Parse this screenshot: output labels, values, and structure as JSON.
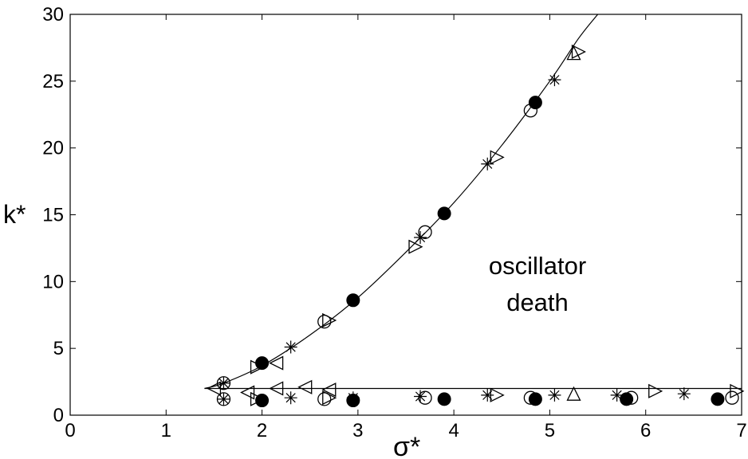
{
  "chart_data": {
    "type": "scatter",
    "title": "",
    "xlabel": "σ*",
    "ylabel": "k*",
    "xlim": [
      0,
      7
    ],
    "ylim": [
      0,
      30
    ],
    "xticks": [
      0,
      1,
      2,
      3,
      4,
      5,
      6,
      7
    ],
    "yticks": [
      0,
      5,
      10,
      15,
      20,
      25,
      30
    ],
    "grid": false,
    "annotation": [
      "oscillator",
      "death"
    ],
    "curves": [
      {
        "points": [
          [
            1.4,
            2.0
          ],
          [
            1.6,
            2.4
          ],
          [
            2.0,
            3.7
          ],
          [
            2.5,
            6.0
          ],
          [
            3.0,
            8.8
          ],
          [
            3.5,
            12.2
          ],
          [
            4.0,
            15.9
          ],
          [
            4.5,
            20.2
          ],
          [
            5.0,
            25.0
          ],
          [
            5.3,
            28.2
          ],
          [
            5.5,
            30.0
          ]
        ]
      },
      {
        "points": [
          [
            1.4,
            2.0
          ],
          [
            7.0,
            2.0
          ]
        ]
      }
    ],
    "series": [
      {
        "marker": "filled-circle",
        "points": [
          [
            2.0,
            3.9
          ],
          [
            2.95,
            8.6
          ],
          [
            3.9,
            15.1
          ],
          [
            4.85,
            23.4
          ],
          [
            2.0,
            1.1
          ],
          [
            2.95,
            1.1
          ],
          [
            3.9,
            1.2
          ],
          [
            4.85,
            1.2
          ],
          [
            5.8,
            1.2
          ],
          [
            6.75,
            1.2
          ]
        ]
      },
      {
        "marker": "open-circle",
        "points": [
          [
            1.6,
            2.4
          ],
          [
            1.6,
            1.2
          ],
          [
            2.65,
            7.0
          ],
          [
            2.65,
            1.2
          ],
          [
            3.7,
            13.7
          ],
          [
            3.7,
            1.3
          ],
          [
            4.8,
            22.8
          ],
          [
            4.8,
            1.3
          ],
          [
            5.85,
            1.3
          ],
          [
            6.9,
            1.3
          ]
        ]
      },
      {
        "marker": "asterisk",
        "points": [
          [
            1.6,
            2.4
          ],
          [
            1.6,
            1.2
          ],
          [
            2.3,
            5.1
          ],
          [
            2.3,
            1.3
          ],
          [
            2.95,
            1.3
          ],
          [
            3.65,
            13.3
          ],
          [
            3.65,
            1.4
          ],
          [
            4.35,
            18.8
          ],
          [
            4.35,
            1.5
          ],
          [
            5.05,
            25.1
          ],
          [
            5.05,
            1.5
          ],
          [
            5.7,
            1.5
          ],
          [
            6.4,
            1.6
          ]
        ]
      },
      {
        "marker": "triangle-right",
        "points": [
          [
            1.95,
            3.6
          ],
          [
            1.95,
            1.2
          ],
          [
            2.7,
            7.1
          ],
          [
            2.7,
            1.3
          ],
          [
            3.6,
            12.6
          ],
          [
            4.45,
            19.3
          ],
          [
            4.45,
            1.5
          ],
          [
            5.3,
            27.2
          ],
          [
            6.1,
            1.8
          ],
          [
            6.95,
            1.8
          ]
        ]
      },
      {
        "marker": "triangle-left",
        "points": [
          [
            1.5,
            2.0
          ],
          [
            1.85,
            1.7
          ],
          [
            2.15,
            3.9
          ],
          [
            2.15,
            2.0
          ],
          [
            2.7,
            1.9
          ],
          [
            2.45,
            2.1
          ]
        ]
      },
      {
        "marker": "triangle-up",
        "points": [
          [
            5.25,
            27.1
          ],
          [
            5.25,
            1.6
          ]
        ]
      }
    ]
  }
}
